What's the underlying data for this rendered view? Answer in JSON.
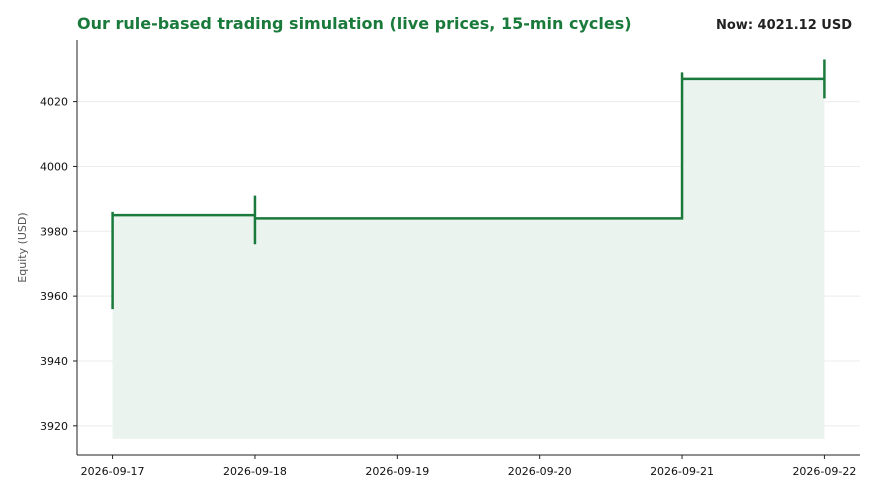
{
  "chart_data": {
    "type": "line",
    "title": "Our rule-based trading simulation (live prices, 15-min cycles)",
    "current_value_label": "Now: 4021.12 USD",
    "xlabel": "",
    "ylabel": "Equity (USD)",
    "x_ticks": [
      "2026-09-17",
      "2026-09-18",
      "2026-09-19",
      "2026-09-20",
      "2026-09-21",
      "2026-09-22"
    ],
    "y_ticks": [
      3920,
      3940,
      3960,
      3980,
      4000,
      4020
    ],
    "ylim": [
      3911,
      4039
    ],
    "xlim": [
      "2026-09-16T18:00",
      "2026-09-22T06:00"
    ],
    "grid": "horizontal",
    "fill_baseline": 3916,
    "colors": {
      "line": "#1a7a3c",
      "fill": "#eaf3ee",
      "grid": "#ececec",
      "title": "#1a7a3c"
    },
    "series": [
      {
        "step": "post",
        "points": [
          {
            "x": "2026-09-17T00:00",
            "y": 3956
          },
          {
            "x": "2026-09-17T00:00",
            "y": 3986
          },
          {
            "x": "2026-09-17T00:00",
            "y": 3985
          },
          {
            "x": "2026-09-18T00:00",
            "y": 3985
          },
          {
            "x": "2026-09-18T00:00",
            "y": 3991
          },
          {
            "x": "2026-09-18T00:00",
            "y": 3976
          },
          {
            "x": "2026-09-18T00:00",
            "y": 3984
          },
          {
            "x": "2026-09-21T00:00",
            "y": 3984
          },
          {
            "x": "2026-09-21T00:00",
            "y": 4029
          },
          {
            "x": "2026-09-21T00:00",
            "y": 4027
          },
          {
            "x": "2026-09-22T00:00",
            "y": 4027
          },
          {
            "x": "2026-09-22T00:00",
            "y": 4033
          },
          {
            "x": "2026-09-22T00:00",
            "y": 4021
          }
        ]
      }
    ]
  }
}
